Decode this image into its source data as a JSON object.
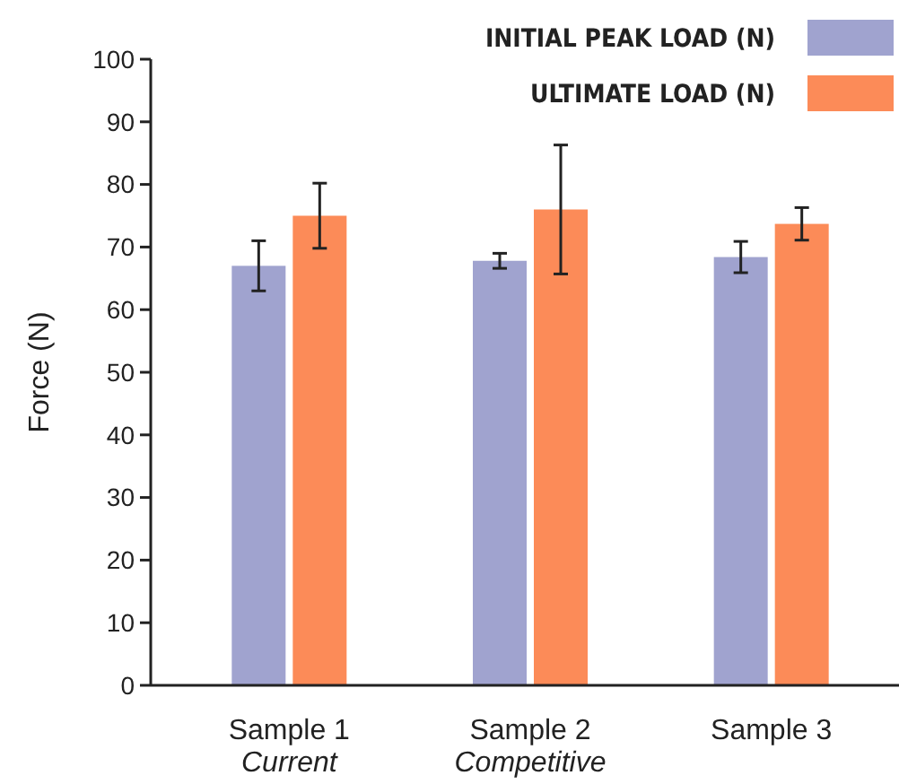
{
  "chart_data": {
    "type": "bar",
    "ylabel": "Force (N)",
    "categories": [
      "Sample 1\nCurrent",
      "Sample 2\nCompetitive",
      "Sample 3"
    ],
    "series": [
      {
        "name": "INITIAL PEAK LOAD (N)",
        "color": "#a0a3cf",
        "values": [
          67,
          67.8,
          68.4
        ],
        "errors": [
          4,
          1.2,
          2.5
        ]
      },
      {
        "name": "ULTIMATE LOAD (N)",
        "color": "#fc8b58",
        "values": [
          75,
          76,
          73.7
        ],
        "errors": [
          5.2,
          10.3,
          2.6
        ]
      }
    ],
    "ylim": [
      0,
      100
    ],
    "yticks": [
      0,
      10,
      20,
      30,
      40,
      50,
      60,
      70,
      80,
      90,
      100
    ],
    "grid": false,
    "legend": "top right"
  }
}
